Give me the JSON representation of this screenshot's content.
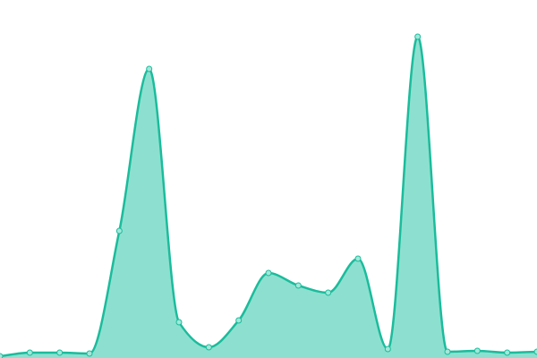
{
  "chart_data": {
    "type": "area",
    "x": [
      0,
      1,
      2,
      3,
      4,
      5,
      6,
      7,
      8,
      9,
      10,
      11,
      12,
      13,
      14,
      15,
      16,
      17,
      18
    ],
    "values": [
      2,
      6,
      6,
      5,
      142,
      323,
      40,
      12,
      42,
      95,
      81,
      73,
      111,
      10,
      359,
      7,
      8,
      6,
      7
    ],
    "xlim": [
      0,
      18
    ],
    "ylim": [
      0,
      400
    ],
    "color": "#1abc9c",
    "fill": "#8de0cf",
    "marker_color": "#a3e8da"
  }
}
